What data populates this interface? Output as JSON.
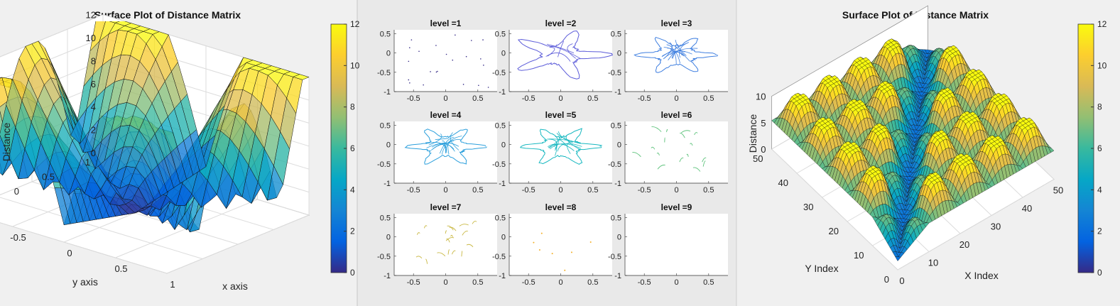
{
  "colors": {
    "panel_bg": "#f0f0f0",
    "mid_bg": "#e9e9e9",
    "axes_bg": "#ffffff",
    "grid": "#dcdcdc",
    "surface_edge": "#111111",
    "parula": [
      "#352a87",
      "#0363e1",
      "#1485d4",
      "#06a7c6",
      "#38b99e",
      "#92bf73",
      "#d9ba56",
      "#fcce2e",
      "#f9fb0e"
    ]
  },
  "chart_data": [
    {
      "type": "surface3d",
      "title": "Surface Plot of Distance Matrix",
      "xlabel": "x axis",
      "ylabel": "y axis",
      "zlabel": "Distance",
      "x_ticks": [
        "-1",
        "-0.5",
        "0",
        "0.5",
        "1"
      ],
      "y_ticks": [
        "-1",
        "-0.5",
        "0",
        "0.5",
        "1"
      ],
      "z_ticks": [
        "0",
        "2",
        "4",
        "6",
        "8",
        "10",
        "12"
      ],
      "xlim": [
        -1,
        1
      ],
      "ylim": [
        -1,
        1
      ],
      "zlim": [
        0,
        12
      ],
      "colorbar": {
        "ticks": [
          "0",
          "2",
          "4",
          "6",
          "8",
          "10",
          "12"
        ],
        "range": [
          0,
          12
        ],
        "colormap": "parula"
      },
      "grid": true
    },
    {
      "type": "line",
      "layout": "3x3 subplots",
      "subplots": [
        {
          "title": "level =1",
          "color": "#352a87",
          "style": "dots"
        },
        {
          "title": "level =2",
          "color": "#5b5bd9",
          "style": "loop"
        },
        {
          "title": "level =3",
          "color": "#3f7fe0",
          "style": "loop"
        },
        {
          "title": "level =4",
          "color": "#2b9fdc",
          "style": "loop"
        },
        {
          "title": "level =5",
          "color": "#18b8c0",
          "style": "loop"
        },
        {
          "title": "level =6",
          "color": "#5cc27a",
          "style": "fragments"
        },
        {
          "title": "level =7",
          "color": "#c9b843",
          "style": "fragments"
        },
        {
          "title": "level =8",
          "color": "#f3b02a",
          "style": "sparse"
        },
        {
          "title": "level =9",
          "color": "#f9e20f",
          "style": "empty"
        }
      ],
      "x_ticks": [
        "-0.5",
        "0",
        "0.5"
      ],
      "y_ticks": [
        "0.5",
        "0",
        "-0.5",
        "-1"
      ],
      "xlim": [
        -0.8,
        0.8
      ],
      "ylim": [
        -1,
        0.6
      ]
    },
    {
      "type": "surface3d",
      "title": "Surface Plot of Distance Matrix",
      "xlabel": "X Index",
      "ylabel": "Y Index",
      "zlabel": "Distance",
      "x_ticks": [
        "0",
        "10",
        "20",
        "30",
        "40",
        "50"
      ],
      "y_ticks": [
        "0",
        "10",
        "20",
        "30",
        "40",
        "50"
      ],
      "z_ticks": [
        "0",
        "5",
        "10"
      ],
      "xlim": [
        0,
        50
      ],
      "ylim": [
        0,
        50
      ],
      "zlim": [
        0,
        12
      ],
      "colorbar": {
        "ticks": [
          "0",
          "2",
          "4",
          "6",
          "8",
          "10",
          "12"
        ],
        "range": [
          0,
          12
        ],
        "colormap": "parula"
      },
      "grid": true
    }
  ]
}
